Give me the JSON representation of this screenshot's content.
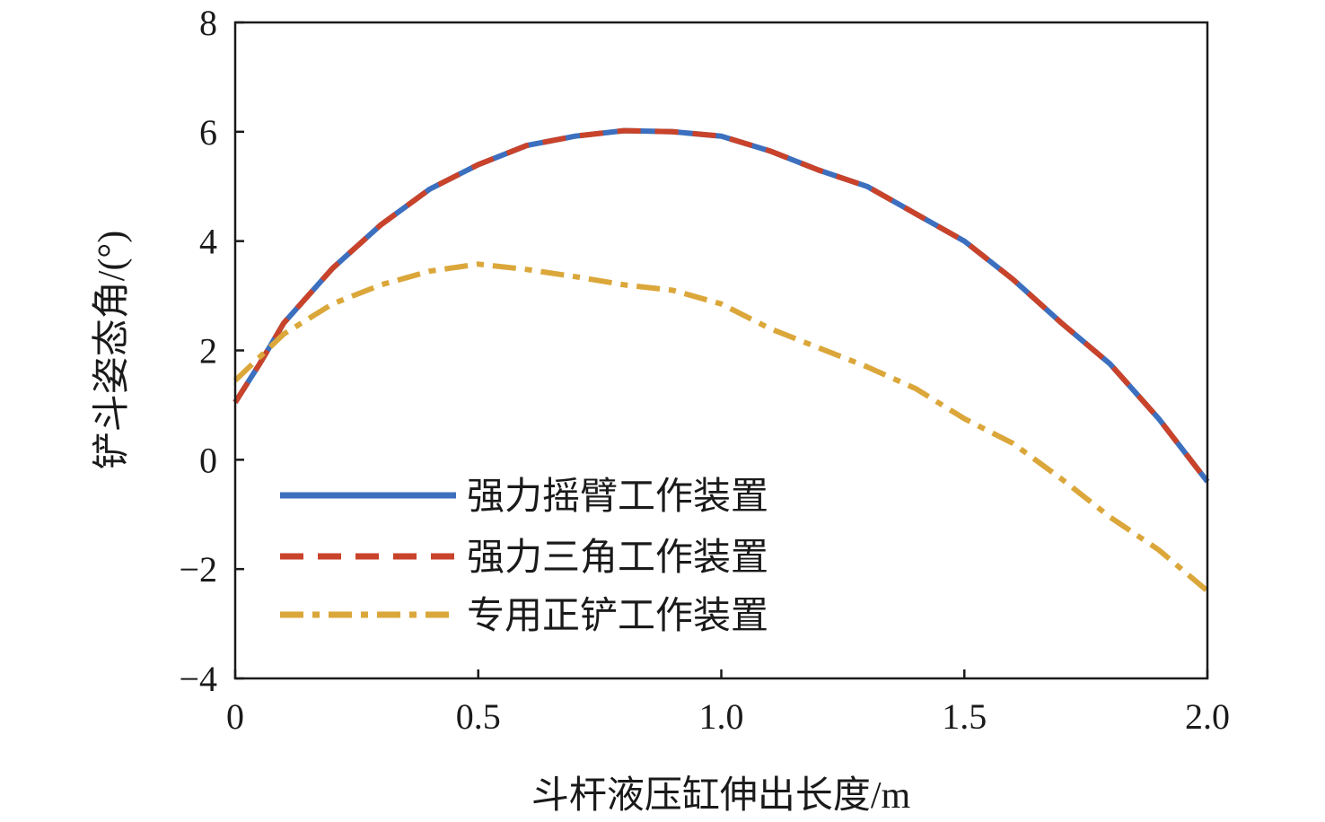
{
  "chart_data": {
    "type": "line",
    "xlabel": "斗杆液压缸伸出长度/m",
    "ylabel": "铲斗姿态角/(°)",
    "xlim": [
      0,
      2.0
    ],
    "ylim": [
      -4,
      8
    ],
    "x_ticks": [
      "0",
      "0.5",
      "1.0",
      "1.5",
      "2.0"
    ],
    "y_ticks": [
      "−4",
      "−2",
      "0",
      "2",
      "4",
      "6",
      "8"
    ],
    "grid": false,
    "legend_position": "lower-left",
    "series": [
      {
        "name": "强力摇臂工作装置",
        "color": "#3c6fbe",
        "style": "solid",
        "x": [
          0,
          0.05,
          0.1,
          0.2,
          0.3,
          0.4,
          0.5,
          0.6,
          0.7,
          0.8,
          0.9,
          1.0,
          1.1,
          1.2,
          1.3,
          1.4,
          1.5,
          1.6,
          1.7,
          1.8,
          1.9,
          2.0
        ],
        "y": [
          1.05,
          1.75,
          2.5,
          3.5,
          4.3,
          4.95,
          5.4,
          5.75,
          5.92,
          6.02,
          6.0,
          5.92,
          5.65,
          5.3,
          5.0,
          4.5,
          4.0,
          3.3,
          2.5,
          1.75,
          0.75,
          -0.4
        ]
      },
      {
        "name": "强力三角工作装置",
        "color": "#c9432b",
        "style": "dashed",
        "x": [
          0,
          0.05,
          0.1,
          0.2,
          0.3,
          0.4,
          0.5,
          0.6,
          0.7,
          0.8,
          0.9,
          1.0,
          1.1,
          1.2,
          1.3,
          1.4,
          1.5,
          1.6,
          1.7,
          1.8,
          1.9,
          2.0
        ],
        "y": [
          1.05,
          1.75,
          2.5,
          3.5,
          4.3,
          4.95,
          5.4,
          5.75,
          5.92,
          6.02,
          6.0,
          5.92,
          5.65,
          5.3,
          5.0,
          4.5,
          4.0,
          3.3,
          2.5,
          1.75,
          0.75,
          -0.4
        ]
      },
      {
        "name": "专用正铲工作装置",
        "color": "#dba73a",
        "style": "dashdot",
        "x": [
          0,
          0.1,
          0.2,
          0.3,
          0.4,
          0.5,
          0.6,
          0.7,
          0.8,
          0.9,
          1.0,
          1.1,
          1.2,
          1.3,
          1.4,
          1.5,
          1.6,
          1.7,
          1.8,
          1.9,
          2.0
        ],
        "y": [
          1.45,
          2.3,
          2.85,
          3.2,
          3.45,
          3.58,
          3.48,
          3.35,
          3.2,
          3.1,
          2.85,
          2.4,
          2.05,
          1.7,
          1.3,
          0.75,
          0.3,
          -0.35,
          -1.05,
          -1.65,
          -2.4
        ]
      }
    ]
  }
}
